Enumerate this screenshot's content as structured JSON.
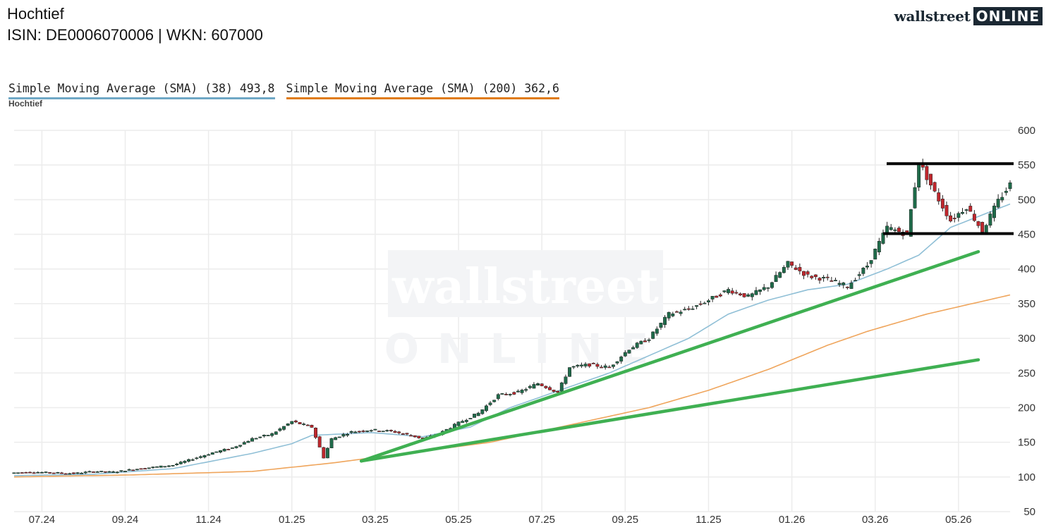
{
  "header": {
    "title": "Hochtief",
    "subtitle": "ISIN: DE0006070006  | WKN: 607000"
  },
  "logo": {
    "word": "wallstreet",
    "box": "ONLINE"
  },
  "watermark": {
    "line1": "wallstreet",
    "line2": "ONLINE"
  },
  "legend": [
    {
      "label": "Simple Moving Average (SMA) (38) 493,8",
      "color": "#6fa8c5"
    },
    {
      "label": "Simple Moving Average (SMA) (200) 362,6",
      "color": "#e07b12"
    }
  ],
  "series_label": "Hochtief",
  "colors": {
    "up": "#1f6b4a",
    "down": "#c0272d",
    "sma38": "#8fbfd6",
    "sma200": "#efa55c",
    "trendline": "#3fb052",
    "level": "#000000",
    "grid": "#ececec"
  },
  "chart_data": {
    "type": "candlestick",
    "x_ticks": [
      "07.24",
      "09.24",
      "11.24",
      "01.25",
      "03.25",
      "05.25",
      "07.25",
      "09.25",
      "11.25",
      "01.26",
      "03.26",
      "05.26"
    ],
    "x_range": [
      "2024-06",
      "2026-06"
    ],
    "y_ticks": [
      600,
      550,
      500,
      450,
      400,
      350,
      300,
      250,
      200,
      150,
      100,
      50
    ],
    "ylim": [
      50,
      600
    ],
    "price_anchors": [
      [
        0,
        106
      ],
      [
        5,
        107
      ],
      [
        10,
        106
      ],
      [
        15,
        105
      ],
      [
        20,
        108
      ],
      [
        25,
        107
      ],
      [
        30,
        111
      ],
      [
        35,
        114
      ],
      [
        40,
        117
      ],
      [
        45,
        126
      ],
      [
        50,
        135
      ],
      [
        55,
        142
      ],
      [
        60,
        155
      ],
      [
        65,
        162
      ],
      [
        70,
        180
      ],
      [
        75,
        172
      ],
      [
        78,
        128
      ],
      [
        80,
        155
      ],
      [
        85,
        165
      ],
      [
        90,
        168
      ],
      [
        95,
        166
      ],
      [
        100,
        160
      ],
      [
        103,
        155
      ],
      [
        107,
        162
      ],
      [
        112,
        178
      ],
      [
        117,
        192
      ],
      [
        122,
        218
      ],
      [
        127,
        222
      ],
      [
        132,
        235
      ],
      [
        137,
        222
      ],
      [
        140,
        258
      ],
      [
        145,
        262
      ],
      [
        150,
        258
      ],
      [
        155,
        285
      ],
      [
        160,
        300
      ],
      [
        165,
        335
      ],
      [
        170,
        342
      ],
      [
        175,
        355
      ],
      [
        180,
        370
      ],
      [
        185,
        360
      ],
      [
        190,
        375
      ],
      [
        195,
        408
      ],
      [
        200,
        390
      ],
      [
        205,
        385
      ],
      [
        210,
        375
      ],
      [
        215,
        405
      ],
      [
        220,
        460
      ],
      [
        225,
        450
      ],
      [
        228,
        555
      ],
      [
        232,
        510
      ],
      [
        236,
        470
      ],
      [
        240,
        490
      ],
      [
        244,
        455
      ],
      [
        248,
        498
      ],
      [
        251,
        522
      ]
    ],
    "sma38": [
      [
        0,
        102
      ],
      [
        20,
        104
      ],
      [
        40,
        112
      ],
      [
        60,
        134
      ],
      [
        70,
        148
      ],
      [
        75,
        160
      ],
      [
        90,
        164
      ],
      [
        103,
        158
      ],
      [
        115,
        172
      ],
      [
        125,
        200
      ],
      [
        135,
        220
      ],
      [
        150,
        250
      ],
      [
        160,
        275
      ],
      [
        170,
        300
      ],
      [
        180,
        335
      ],
      [
        190,
        355
      ],
      [
        200,
        370
      ],
      [
        210,
        378
      ],
      [
        220,
        400
      ],
      [
        228,
        420
      ],
      [
        236,
        460
      ],
      [
        244,
        478
      ],
      [
        251,
        493.8
      ]
    ],
    "sma200": [
      [
        0,
        100
      ],
      [
        30,
        103
      ],
      [
        60,
        108
      ],
      [
        80,
        120
      ],
      [
        100,
        135
      ],
      [
        120,
        150
      ],
      [
        140,
        175
      ],
      [
        160,
        200
      ],
      [
        175,
        225
      ],
      [
        190,
        255
      ],
      [
        205,
        290
      ],
      [
        215,
        310
      ],
      [
        230,
        335
      ],
      [
        251,
        362.6
      ]
    ],
    "trendlines": [
      {
        "from": [
          "2025-03",
          123
        ],
        "to": [
          "2026-06",
          425
        ]
      },
      {
        "from": [
          "2025-03",
          123
        ],
        "to": [
          "2026-06",
          269
        ]
      }
    ],
    "horizontal_levels": [
      552,
      451
    ]
  }
}
